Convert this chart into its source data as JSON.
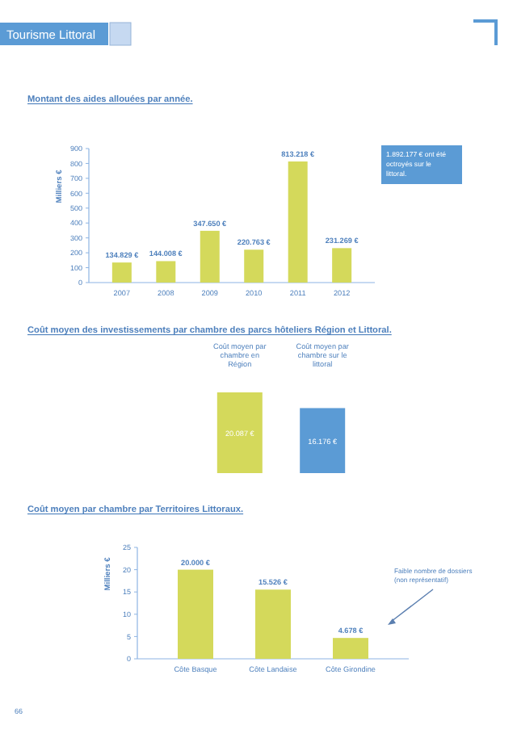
{
  "chart_data": [
    {
      "type": "bar",
      "title": "Montant des aides allouées par année.",
      "subtitle": "Tourisme Littoral",
      "ylabel": "Milliers €",
      "categories": [
        "2007",
        "2008",
        "2009",
        "2010",
        "2011",
        "2012"
      ],
      "values": [
        134.829,
        144.008,
        347.65,
        220.763,
        813.218,
        231.269
      ],
      "value_labels": [
        "134.829 €",
        "144.008 €",
        "347.650 €",
        "220.763 €",
        "813.218 €",
        "231.269 €"
      ],
      "color": "#d4d95b",
      "ylim": [
        0,
        900
      ],
      "yticks": [
        0,
        100,
        200,
        300,
        400,
        500,
        600,
        700,
        800,
        900
      ],
      "annotations": [
        "1.892.177 € ont été octroyés sur le littoral."
      ]
    },
    {
      "type": "bar",
      "title": "Coût moyen des investissements par chambre des parcs hôteliers Région et Littoral.",
      "categories": [
        "Coût moyen par chambre en Région",
        "Coût moyen par chambre sur le littoral"
      ],
      "values": [
        20.087,
        16.176
      ],
      "value_labels": [
        "20.087 €",
        "16.176 €"
      ],
      "colors": [
        "#d4d95b",
        "#5b9bd5"
      ],
      "tick_labels": "x"
    },
    {
      "type": "bar",
      "title": "Coût moyen par chambre par Territoires Littoraux.",
      "ylabel": "Milliers €",
      "categories": [
        "Côte Basque",
        "Côte Landaise",
        "Côte Girondine"
      ],
      "values": [
        20,
        15.526,
        4.678
      ],
      "value_labels": [
        "20.000 €",
        "15.526 €",
        "4.678 €"
      ],
      "color": "#d4d95b",
      "ylim": [
        0,
        25
      ],
      "yticks": [
        0,
        5,
        10,
        15,
        20,
        25
      ],
      "annotations": [
        "Faible nombre de dossiers (non représentatif)",
        "66"
      ]
    }
  ]
}
